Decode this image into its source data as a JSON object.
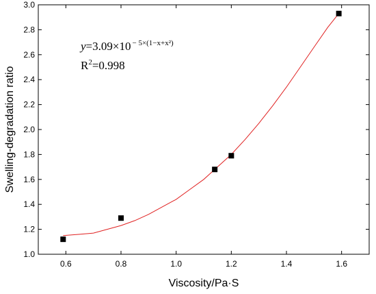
{
  "chart_data": {
    "type": "scatter",
    "xlabel": "Viscosity/Pa·S",
    "ylabel": "Swelling-degradation ratio",
    "xlim": [
      0.5,
      1.7
    ],
    "ylim": [
      1.0,
      3.0
    ],
    "x_ticks": [
      0.6,
      0.8,
      1.0,
      1.2,
      1.4,
      1.6
    ],
    "y_ticks": [
      1.0,
      1.2,
      1.4,
      1.6,
      1.8,
      2.0,
      2.2,
      2.4,
      2.6,
      2.8,
      3.0
    ],
    "grid": false,
    "legend": "none",
    "series": [
      {
        "x": [
          0.59,
          0.8,
          1.14,
          1.2,
          1.59
        ],
        "y": [
          1.12,
          1.29,
          1.68,
          1.79,
          2.93
        ],
        "color": "#000000",
        "marker": "square"
      }
    ],
    "fit": {
      "color": "#e02020",
      "x": [
        0.59,
        0.65,
        0.7,
        0.75,
        0.8,
        0.85,
        0.9,
        0.95,
        1.0,
        1.05,
        1.1,
        1.14,
        1.2,
        1.25,
        1.3,
        1.35,
        1.4,
        1.45,
        1.5,
        1.55,
        1.59
      ],
      "y": [
        1.15,
        1.16,
        1.17,
        1.2,
        1.23,
        1.27,
        1.32,
        1.38,
        1.44,
        1.52,
        1.6,
        1.68,
        1.8,
        1.92,
        2.05,
        2.19,
        2.34,
        2.5,
        2.66,
        2.82,
        2.93
      ]
    },
    "annotation": {
      "equation_y": "y",
      "equation_main": "=3.09×10",
      "equation_exponent": "− 5×(1−x+x²)",
      "r2_main": "R",
      "r2_sup": "2",
      "r2_value": "=0.998"
    }
  }
}
